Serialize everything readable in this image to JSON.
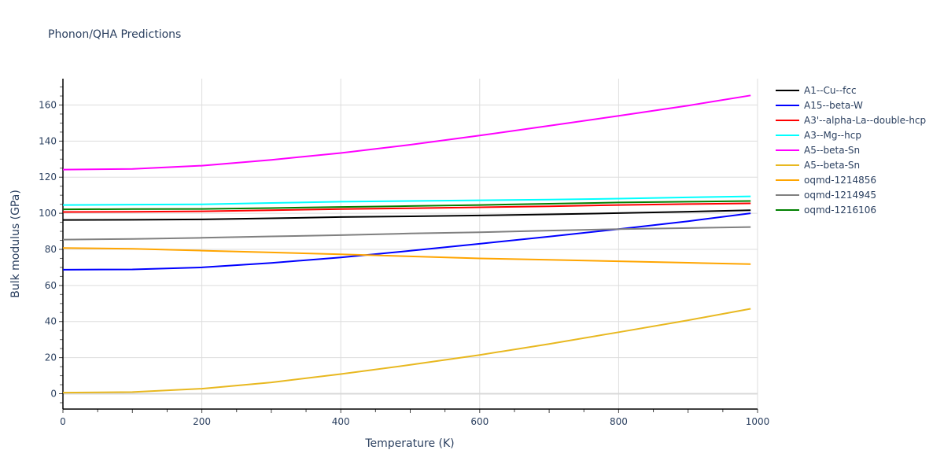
{
  "chart_data": {
    "type": "line",
    "title": "Phonon/QHA Predictions",
    "xlabel": "Temperature (K)",
    "ylabel": "Bulk modulus (GPa)",
    "xlim": [
      0,
      1000
    ],
    "ylim": [
      -8.5,
      174.6
    ],
    "xticks": [
      0,
      200,
      400,
      600,
      800,
      1000
    ],
    "yticks": [
      0,
      20,
      40,
      60,
      80,
      100,
      120,
      140,
      160
    ],
    "grid": true,
    "legend_position": "right",
    "x": [
      0,
      100,
      200,
      300,
      400,
      500,
      600,
      700,
      800,
      900,
      990
    ],
    "series": [
      {
        "name": "A1--Cu--fcc",
        "color": "#000000",
        "values": [
          96.3,
          96.4,
          96.6,
          97.2,
          97.9,
          98.3,
          98.8,
          99.4,
          100.1,
          100.9,
          101.7
        ]
      },
      {
        "name": "A15--beta-W",
        "color": "#0000ff",
        "values": [
          68.7,
          68.9,
          70.0,
          72.5,
          75.5,
          79.2,
          83.1,
          87.1,
          91.2,
          95.6,
          100.0
        ]
      },
      {
        "name": "A3'--alpha-La--double-hcp",
        "color": "#ff0000",
        "values": [
          100.7,
          100.8,
          101.1,
          101.7,
          102.3,
          102.8,
          103.3,
          103.9,
          104.6,
          105.1,
          105.5
        ]
      },
      {
        "name": "A3--Mg--hcp",
        "color": "#00ffff",
        "values": [
          104.6,
          104.8,
          105.0,
          105.7,
          106.4,
          106.8,
          107.2,
          107.6,
          108.1,
          108.8,
          109.4
        ]
      },
      {
        "name": "A5--beta-Sn",
        "color": "#ff00ff",
        "values": [
          124.2,
          124.6,
          126.4,
          129.6,
          133.4,
          138.0,
          143.1,
          148.5,
          154.0,
          159.7,
          165.3
        ]
      },
      {
        "name": "A5--beta-Sn",
        "color": "#e8b820",
        "values": [
          0.6,
          0.9,
          2.8,
          6.3,
          10.9,
          16.0,
          21.5,
          27.6,
          34.1,
          40.7,
          47.1
        ]
      },
      {
        "name": "oqmd-1214856",
        "color": "#ffa500",
        "values": [
          80.8,
          80.3,
          79.3,
          78.3,
          77.3,
          76.1,
          75.0,
          74.2,
          73.4,
          72.6,
          71.8
        ]
      },
      {
        "name": "oqmd-1214945",
        "color": "#808080",
        "values": [
          85.4,
          85.8,
          86.4,
          87.2,
          87.9,
          88.8,
          89.5,
          90.4,
          91.2,
          91.8,
          92.4
        ]
      },
      {
        "name": "oqmd-1216106",
        "color": "#008000",
        "values": [
          102.2,
          102.3,
          102.4,
          102.9,
          103.5,
          104.0,
          104.6,
          105.3,
          106.0,
          106.4,
          106.8
        ]
      }
    ]
  }
}
